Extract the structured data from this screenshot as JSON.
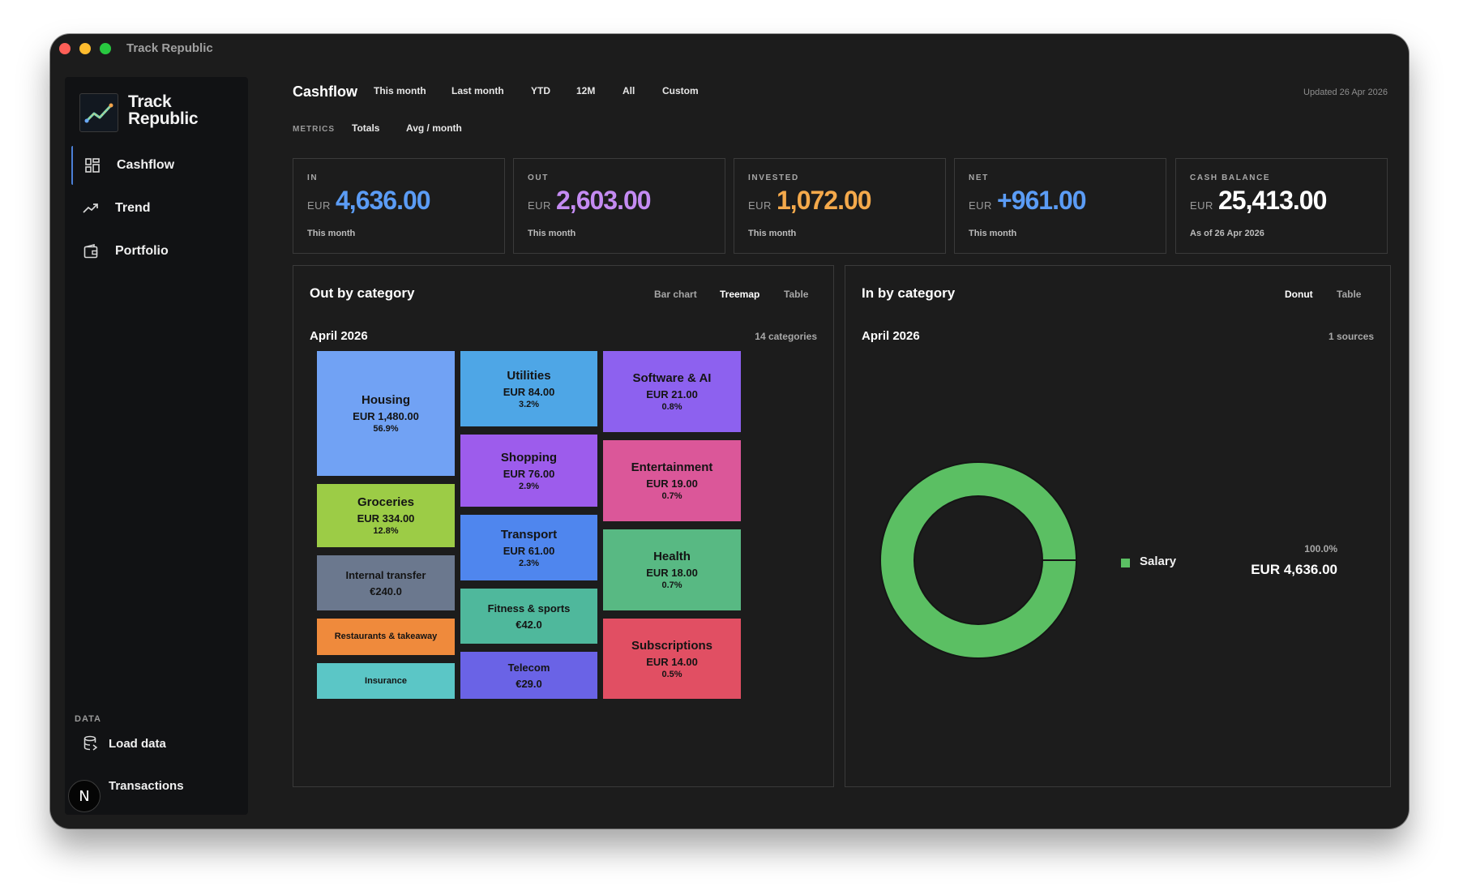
{
  "window": {
    "title": "Track Republic"
  },
  "sidebar": {
    "brand": "Track Republic",
    "nav": [
      {
        "label": "Cashflow",
        "icon": "dashboard-icon",
        "active": true
      },
      {
        "label": "Trend",
        "icon": "trend-icon",
        "active": false
      },
      {
        "label": "Portfolio",
        "icon": "wallet-icon",
        "active": false
      }
    ],
    "section_label": "DATA",
    "data_items": [
      {
        "label": "Load data",
        "icon": "database-icon"
      },
      {
        "label": "Transactions",
        "icon": "list-icon"
      }
    ],
    "avatar_letter": "N"
  },
  "header": {
    "title": "Cashflow",
    "ranges": [
      "This month",
      "Last month",
      "YTD",
      "12M",
      "All",
      "Custom"
    ],
    "updated": "Updated 26 Apr 2026",
    "metrics_label": "METRICS",
    "metric_modes": [
      "Totals",
      "Avg / month"
    ]
  },
  "kpis": [
    {
      "label": "IN",
      "currency": "EUR",
      "value": "4,636.00",
      "sub": "This month",
      "color": "#5b9cf5"
    },
    {
      "label": "OUT",
      "currency": "EUR",
      "value": "2,603.00",
      "sub": "This month",
      "color": "#c48bf2"
    },
    {
      "label": "INVESTED",
      "currency": "EUR",
      "value": "1,072.00",
      "sub": "This month",
      "color": "#f4a94b"
    },
    {
      "label": "NET",
      "currency": "EUR",
      "value": "+961.00",
      "sub": "This month",
      "color": "#5b9cf5"
    },
    {
      "label": "CASH BALANCE",
      "currency": "EUR",
      "value": "25,413.00",
      "sub": "As of 26 Apr 2026",
      "color": "#ffffff"
    }
  ],
  "out_panel": {
    "title": "Out by category",
    "tabs": [
      "Bar chart",
      "Treemap",
      "Table"
    ],
    "active_tab": "Treemap",
    "period": "April 2026",
    "count": "14 categories",
    "tiles": [
      {
        "name": "Housing",
        "amount": "EUR 1,480.00",
        "pct": "56.9%",
        "color": "#71a2f4"
      },
      {
        "name": "Groceries",
        "amount": "EUR 334.00",
        "pct": "12.8%",
        "color": "#9ccc46"
      },
      {
        "name": "Internal transfer",
        "amount": "€240.0",
        "pct": "",
        "color": "#6b788e"
      },
      {
        "name": "Restaurants & takeaway",
        "amount": "",
        "pct": "",
        "color": "#ef8a3c"
      },
      {
        "name": "Insurance",
        "amount": "",
        "pct": "",
        "color": "#5bc6c6"
      },
      {
        "name": "Utilities",
        "amount": "EUR 84.00",
        "pct": "3.2%",
        "color": "#4ea6e6"
      },
      {
        "name": "Shopping",
        "amount": "EUR 76.00",
        "pct": "2.9%",
        "color": "#9d5cec"
      },
      {
        "name": "Transport",
        "amount": "EUR 61.00",
        "pct": "2.3%",
        "color": "#4f86ee"
      },
      {
        "name": "Fitness & sports",
        "amount": "€42.0",
        "pct": "",
        "color": "#4fb89c"
      },
      {
        "name": "Telecom",
        "amount": "€29.0",
        "pct": "",
        "color": "#6a63e6"
      },
      {
        "name": "Software & AI",
        "amount": "EUR 21.00",
        "pct": "0.8%",
        "color": "#8d61ef"
      },
      {
        "name": "Entertainment",
        "amount": "EUR 19.00",
        "pct": "0.7%",
        "color": "#db5799"
      },
      {
        "name": "Health",
        "amount": "EUR 18.00",
        "pct": "0.7%",
        "color": "#58b983"
      },
      {
        "name": "Subscriptions",
        "amount": "EUR 14.00",
        "pct": "0.5%",
        "color": "#e14f63"
      }
    ]
  },
  "in_panel": {
    "title": "In by category",
    "tabs": [
      "Donut",
      "Table"
    ],
    "active_tab": "Donut",
    "period": "April 2026",
    "count": "1 sources",
    "legend": {
      "name": "Salary",
      "pct": "100.0%",
      "amount": "EUR 4,636.00",
      "color": "#5bbf63"
    }
  },
  "chart_data": [
    {
      "type": "treemap",
      "title": "Out by category",
      "categories": [
        "Housing",
        "Groceries",
        "Internal transfer",
        "Restaurants & takeaway",
        "Insurance",
        "Utilities",
        "Shopping",
        "Transport",
        "Fitness & sports",
        "Telecom",
        "Software & AI",
        "Entertainment",
        "Health",
        "Subscriptions"
      ],
      "values": [
        1480,
        334,
        240,
        null,
        null,
        84,
        76,
        61,
        42,
        29,
        21,
        19,
        18,
        14
      ],
      "unit": "EUR"
    },
    {
      "type": "pie",
      "title": "In by category",
      "categories": [
        "Salary"
      ],
      "values": [
        4636
      ],
      "percent": [
        100.0
      ],
      "unit": "EUR"
    }
  ]
}
